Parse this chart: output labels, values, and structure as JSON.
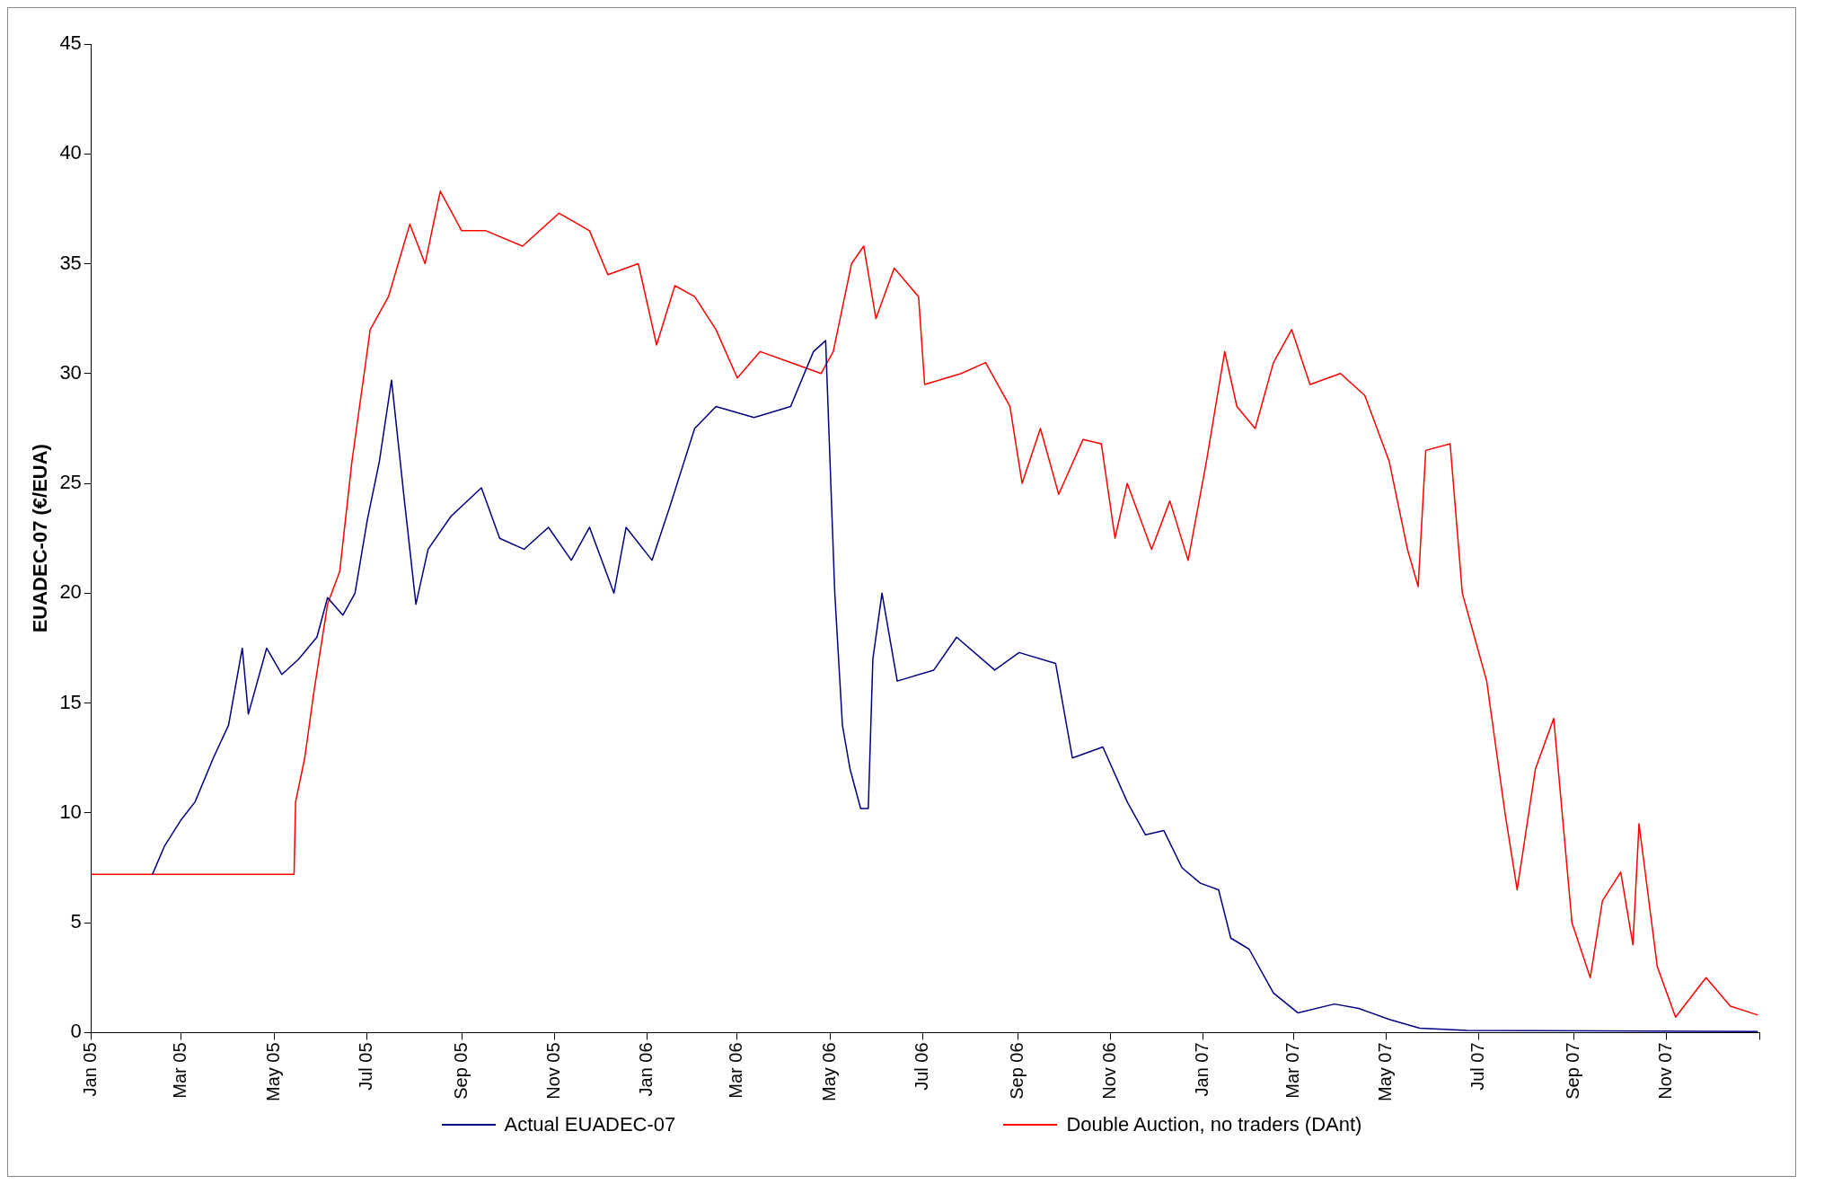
{
  "chart_data": {
    "type": "line",
    "ylabel": "EUADEC-07 (€/EUA)",
    "legend": "bottom",
    "grid": false,
    "marker": "none",
    "line_style": "solid",
    "xlim": [
      "2005-01-01",
      "2008-01-01"
    ],
    "ylim": [
      0,
      45
    ],
    "yticks": [
      0,
      5,
      10,
      15,
      20,
      25,
      30,
      35,
      40,
      45
    ],
    "xticks": [
      {
        "value": "2005-01-01",
        "label": "Jan 05"
      },
      {
        "value": "2005-03-01",
        "label": "Mar 05"
      },
      {
        "value": "2005-05-01",
        "label": "May 05"
      },
      {
        "value": "2005-07-01",
        "label": "Jul 05"
      },
      {
        "value": "2005-09-01",
        "label": "Sep 05"
      },
      {
        "value": "2005-11-01",
        "label": "Nov 05"
      },
      {
        "value": "2006-01-01",
        "label": "Jan 06"
      },
      {
        "value": "2006-03-01",
        "label": "Mar 06"
      },
      {
        "value": "2006-05-01",
        "label": "May 06"
      },
      {
        "value": "2006-07-01",
        "label": "Jul 06"
      },
      {
        "value": "2006-09-01",
        "label": "Sep 06"
      },
      {
        "value": "2006-11-01",
        "label": "Nov 06"
      },
      {
        "value": "2007-01-01",
        "label": "Jan 07"
      },
      {
        "value": "2007-03-01",
        "label": "Mar 07"
      },
      {
        "value": "2007-05-01",
        "label": "May 07"
      },
      {
        "value": "2007-07-01",
        "label": "Jul 07"
      },
      {
        "value": "2007-09-01",
        "label": "Sep 07"
      },
      {
        "value": "2007-11-01",
        "label": "Nov 07"
      },
      {
        "value": "2008-01-01",
        "label": null
      }
    ],
    "series": [
      {
        "name": "Actual EUADEC-07",
        "color": "#000080",
        "x": [
          "2005-02-10",
          "2005-02-18",
          "2005-03-01",
          "2005-03-10",
          "2005-03-22",
          "2005-04-01",
          "2005-04-10",
          "2005-04-14",
          "2005-04-26",
          "2005-05-06",
          "2005-05-17",
          "2005-05-29",
          "2005-06-05",
          "2005-06-15",
          "2005-06-23",
          "2005-07-01",
          "2005-07-09",
          "2005-07-17",
          "2005-07-25",
          "2005-08-02",
          "2005-08-10",
          "2005-08-25",
          "2005-09-14",
          "2005-09-26",
          "2005-10-12",
          "2005-10-28",
          "2005-11-12",
          "2005-11-24",
          "2005-12-10",
          "2005-12-18",
          "2006-01-04",
          "2006-01-16",
          "2006-02-01",
          "2006-02-15",
          "2006-03-12",
          "2006-04-05",
          "2006-04-20",
          "2006-04-28",
          "2006-05-04",
          "2006-05-09",
          "2006-05-14",
          "2006-05-21",
          "2006-05-26",
          "2006-05-29",
          "2006-06-04",
          "2006-06-14",
          "2006-07-08",
          "2006-07-23",
          "2006-08-17",
          "2006-09-02",
          "2006-09-26",
          "2006-10-07",
          "2006-10-27",
          "2006-11-12",
          "2006-11-24",
          "2006-12-06",
          "2006-12-18",
          "2006-12-30",
          "2007-01-11",
          "2007-01-19",
          "2007-01-31",
          "2007-02-16",
          "2007-03-04",
          "2007-03-28",
          "2007-04-13",
          "2007-05-03",
          "2007-05-23",
          "2007-06-23",
          "2007-12-31"
        ],
        "values": [
          7.2,
          8.5,
          9.7,
          10.5,
          12.5,
          14,
          17.5,
          14.5,
          17.5,
          16.3,
          17,
          18,
          19.8,
          19,
          20,
          23.3,
          26,
          29.7,
          24.5,
          19.5,
          22,
          23.5,
          24.8,
          22.5,
          22,
          23,
          21.5,
          23,
          20,
          23,
          21.5,
          24,
          27.5,
          28.5,
          28,
          28.5,
          31,
          31.5,
          20,
          14,
          12,
          10.2,
          10.2,
          17,
          20,
          16,
          16.5,
          18,
          16.5,
          17.3,
          16.8,
          12.5,
          13,
          10.5,
          9,
          9.2,
          7.5,
          6.8,
          6.5,
          4.3,
          3.8,
          1.8,
          0.9,
          1.3,
          1.1,
          0.6,
          0.2,
          0.1,
          0.05
        ]
      },
      {
        "name": "Double Auction, no traders (DAnt)",
        "color": "#ff0000",
        "x": [
          "2005-01-01",
          "2005-05-14",
          "2005-05-15",
          "2005-05-21",
          "2005-05-27",
          "2005-06-05",
          "2005-06-13",
          "2005-06-21",
          "2005-07-03",
          "2005-07-15",
          "2005-07-29",
          "2005-08-08",
          "2005-08-18",
          "2005-09-01",
          "2005-09-17",
          "2005-10-11",
          "2005-11-04",
          "2005-11-24",
          "2005-12-06",
          "2005-12-26",
          "2006-01-07",
          "2006-01-19",
          "2006-02-01",
          "2006-02-15",
          "2006-03-01",
          "2006-03-16",
          "2006-04-05",
          "2006-04-25",
          "2006-05-03",
          "2006-05-15",
          "2006-05-23",
          "2006-05-31",
          "2006-06-12",
          "2006-06-28",
          "2006-07-02",
          "2006-07-26",
          "2006-08-11",
          "2006-08-27",
          "2006-09-04",
          "2006-09-16",
          "2006-09-28",
          "2006-10-14",
          "2006-10-26",
          "2006-11-04",
          "2006-11-12",
          "2006-11-28",
          "2006-12-10",
          "2006-12-22",
          "2007-01-03",
          "2007-01-15",
          "2007-01-23",
          "2007-02-04",
          "2007-02-16",
          "2007-02-28",
          "2007-03-12",
          "2007-04-01",
          "2007-04-17",
          "2007-05-03",
          "2007-05-15",
          "2007-05-22",
          "2007-05-27",
          "2007-06-12",
          "2007-06-20",
          "2007-06-28",
          "2007-07-06",
          "2007-07-18",
          "2007-07-26",
          "2007-08-07",
          "2007-08-19",
          "2007-08-31",
          "2007-09-12",
          "2007-09-20",
          "2007-10-02",
          "2007-10-10",
          "2007-10-14",
          "2007-10-26",
          "2007-11-07",
          "2007-11-27",
          "2007-12-13",
          "2007-12-31"
        ],
        "values": [
          7.2,
          7.2,
          10.5,
          12.5,
          15.5,
          19.5,
          21,
          26,
          32,
          33.5,
          36.8,
          35,
          38.3,
          36.5,
          36.5,
          35.8,
          37.3,
          36.5,
          34.5,
          35,
          31.3,
          34,
          33.5,
          32,
          29.8,
          31,
          30.5,
          30,
          31,
          35,
          35.8,
          32.5,
          34.8,
          33.5,
          29.5,
          30,
          30.5,
          28.5,
          25,
          27.5,
          24.5,
          27,
          26.8,
          22.5,
          25,
          22,
          24.2,
          21.5,
          26,
          31,
          28.5,
          27.5,
          30.5,
          32,
          29.5,
          30,
          29,
          26,
          22,
          20.3,
          26.5,
          26.8,
          20,
          18,
          16,
          10,
          6.5,
          12,
          14.3,
          5,
          2.5,
          6,
          7.3,
          4,
          9.5,
          3,
          0.7,
          2.5,
          1.2,
          0.8
        ]
      }
    ]
  }
}
